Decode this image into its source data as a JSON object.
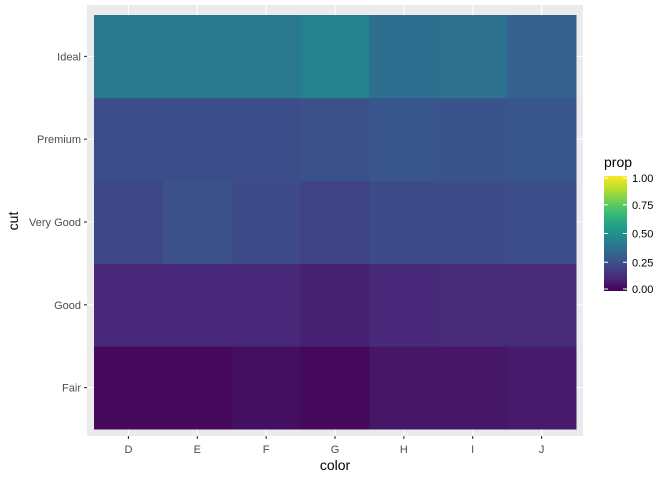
{
  "chart_data": {
    "type": "heatmap",
    "xlabel": "color",
    "ylabel": "cut",
    "x_categories": [
      "D",
      "E",
      "F",
      "G",
      "H",
      "I",
      "J"
    ],
    "y_categories": [
      "Fair",
      "Good",
      "Very Good",
      "Premium",
      "Ideal"
    ],
    "fill_variable": "prop",
    "values": [
      [
        0.02,
        0.02,
        0.04,
        0.02,
        0.06,
        0.06,
        0.07
      ],
      [
        0.11,
        0.11,
        0.11,
        0.09,
        0.11,
        0.12,
        0.12
      ],
      [
        0.22,
        0.25,
        0.23,
        0.2,
        0.23,
        0.23,
        0.24
      ],
      [
        0.24,
        0.24,
        0.24,
        0.25,
        0.27,
        0.26,
        0.27
      ],
      [
        0.41,
        0.4,
        0.4,
        0.44,
        0.36,
        0.37,
        0.31
      ]
    ],
    "legend": {
      "title": "prop",
      "position": "right",
      "breaks": [
        0.0,
        0.25,
        0.5,
        0.75,
        1.0
      ],
      "break_labels": [
        "0.00",
        "0.25",
        "0.50",
        "0.75",
        "1.00"
      ],
      "limits": [
        0,
        1
      ]
    },
    "color_scale": [
      "#440154",
      "#482878",
      "#3e4989",
      "#31688e",
      "#26828e",
      "#1f9e89",
      "#35b779",
      "#6ece58",
      "#b5de2b",
      "#fde725"
    ],
    "panel_background": "#ebebeb",
    "grid": true
  }
}
